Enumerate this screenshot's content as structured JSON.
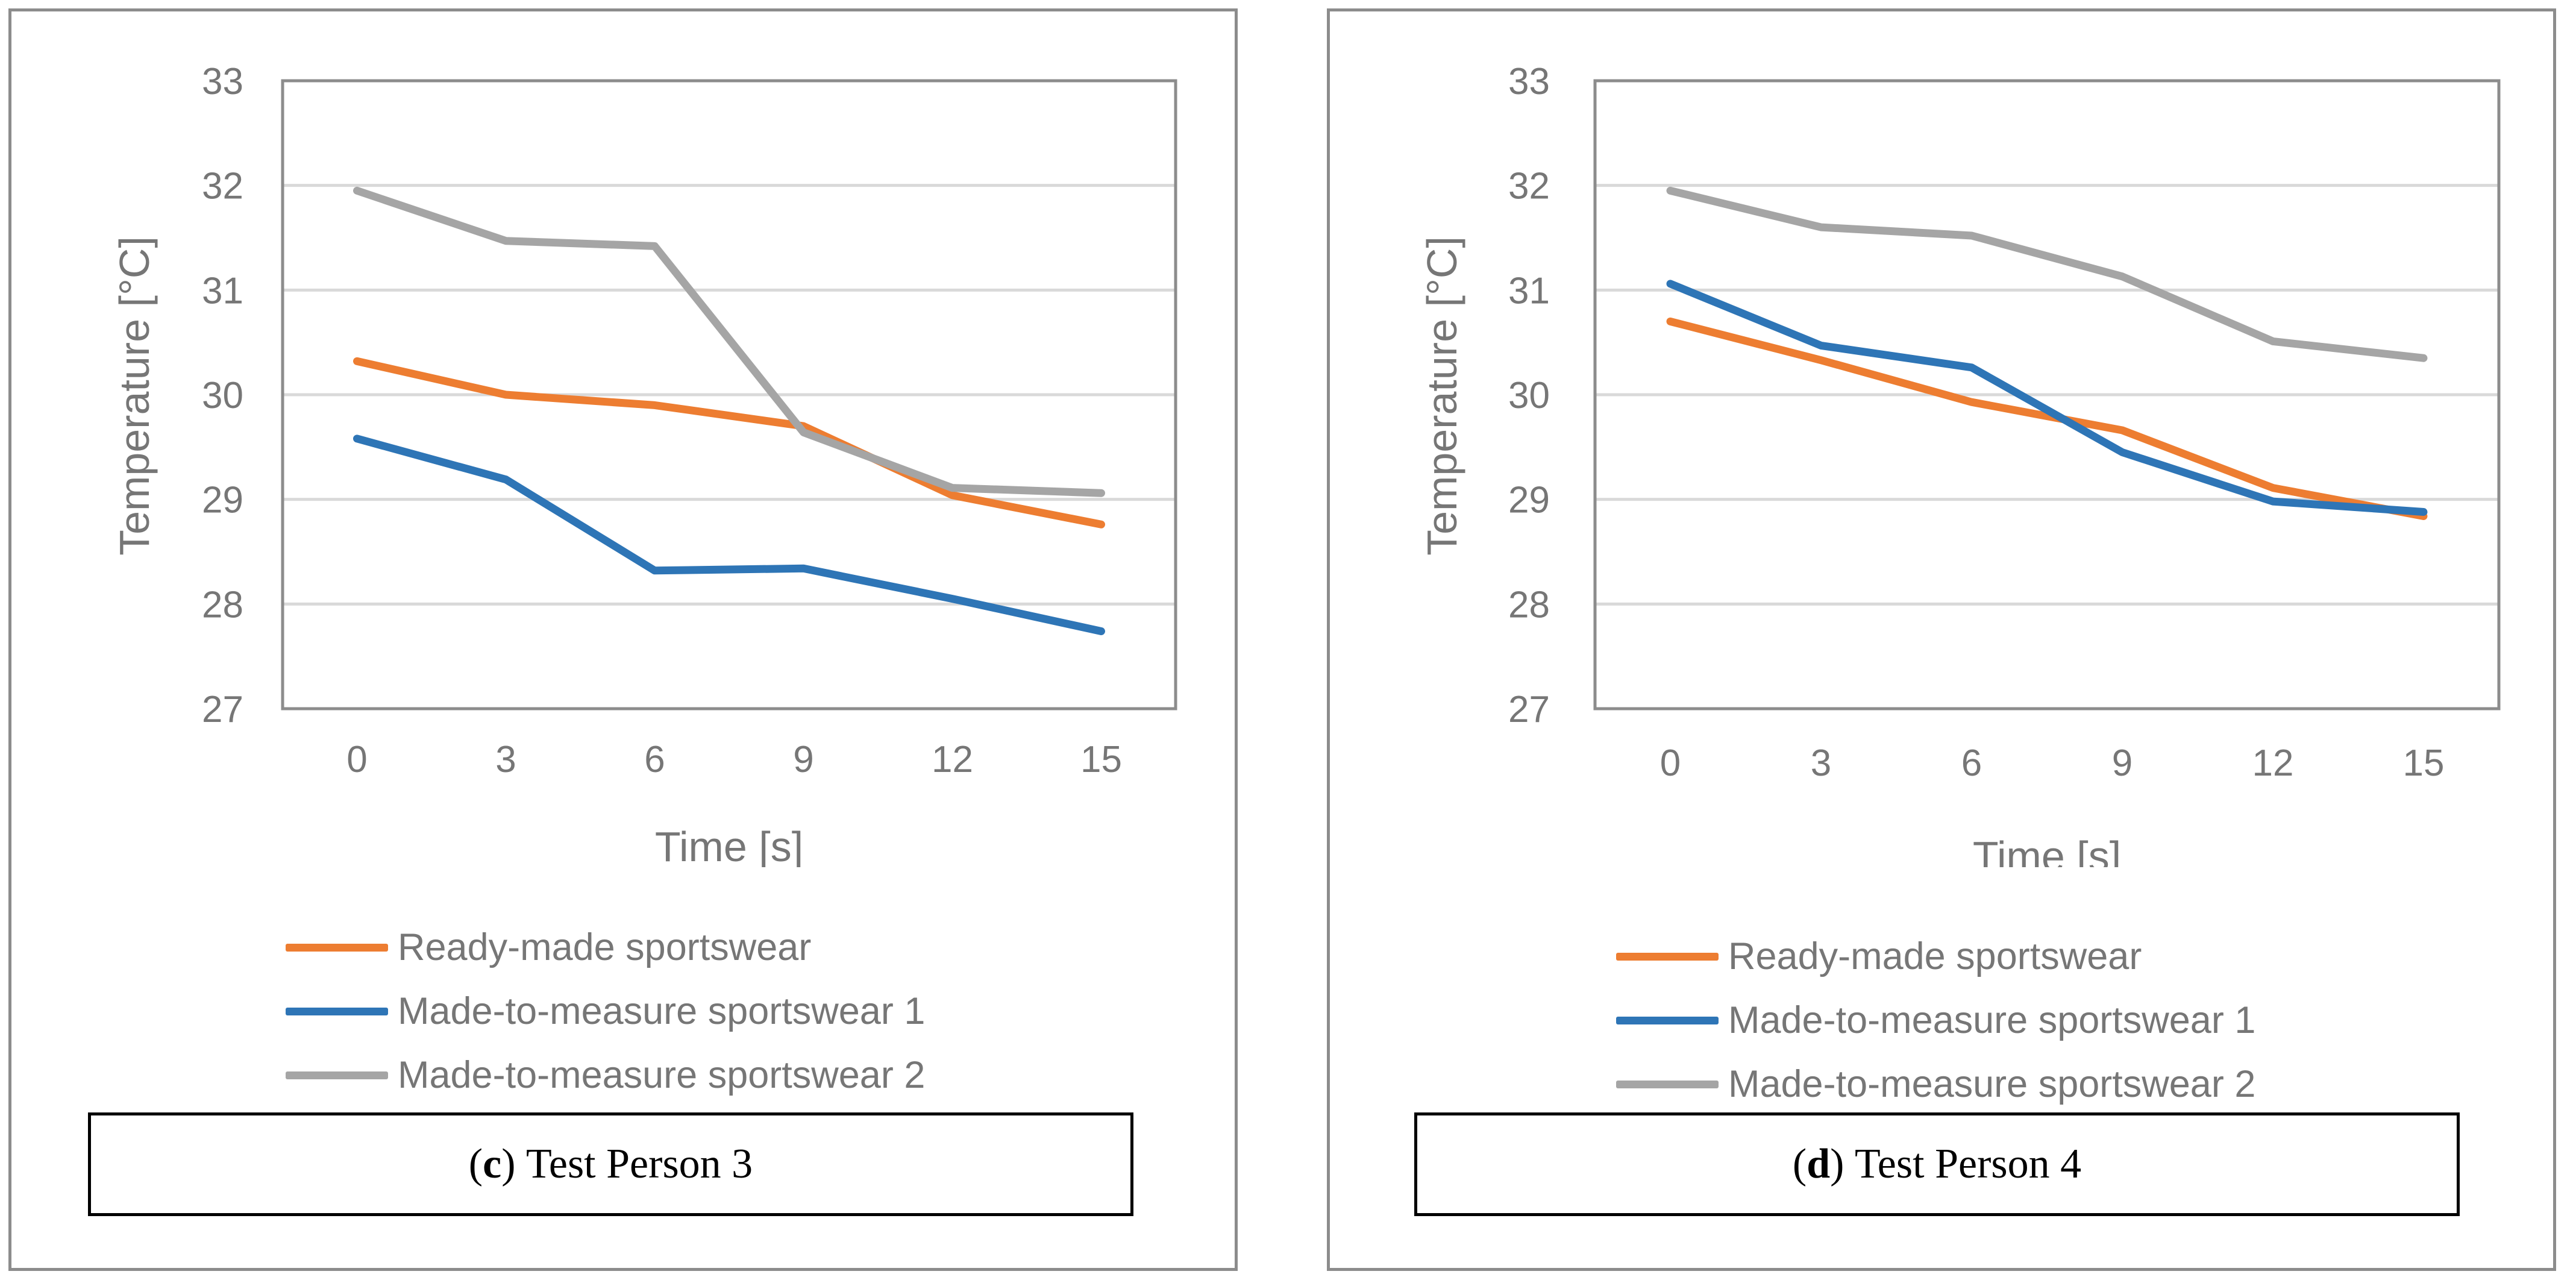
{
  "chart_data": [
    {
      "type": "line",
      "panel_id": "c",
      "caption_letter": "c",
      "caption_text": "Test Person 3",
      "xlabel": "Time [s]",
      "ylabel": "Temperature [°C]",
      "categories": [
        "0",
        "3",
        "6",
        "9",
        "12",
        "15"
      ],
      "ylim": [
        27,
        33
      ],
      "yticks": [
        "27",
        "28",
        "29",
        "30",
        "31",
        "32",
        "33"
      ],
      "grid": true,
      "legend_position": "bottom",
      "series": [
        {
          "name": "Ready-made sportswear",
          "color": "#ed7d31",
          "values": [
            30.32,
            30.0,
            29.9,
            29.7,
            29.04,
            28.76
          ]
        },
        {
          "name": "Made-to-measure sportswear 1",
          "color": "#2e75b6",
          "values": [
            29.58,
            29.19,
            28.32,
            28.34,
            28.05,
            27.74
          ]
        },
        {
          "name": "Made-to-measure sportswear 2",
          "color": "#a5a5a5",
          "values": [
            31.95,
            31.47,
            31.42,
            29.64,
            29.11,
            29.06
          ]
        }
      ]
    },
    {
      "type": "line",
      "panel_id": "d",
      "caption_letter": "d",
      "caption_text": "Test Person 4",
      "xlabel": "Time [s]",
      "ylabel": "Temperature [°C]",
      "categories": [
        "0",
        "3",
        "6",
        "9",
        "12",
        "15"
      ],
      "ylim": [
        27,
        33
      ],
      "yticks": [
        "27",
        "28",
        "29",
        "30",
        "31",
        "32",
        "33"
      ],
      "grid": true,
      "legend_position": "bottom",
      "series": [
        {
          "name": "Ready-made sportswear",
          "color": "#ed7d31",
          "values": [
            30.7,
            30.33,
            29.93,
            29.66,
            29.11,
            28.84
          ]
        },
        {
          "name": "Made-to-measure sportswear 1",
          "color": "#2e75b6",
          "values": [
            31.06,
            30.47,
            30.26,
            29.45,
            28.98,
            28.88
          ]
        },
        {
          "name": "Made-to-measure sportswear 2",
          "color": "#a5a5a5",
          "values": [
            31.95,
            31.6,
            31.52,
            31.13,
            30.51,
            30.35
          ]
        }
      ]
    }
  ]
}
